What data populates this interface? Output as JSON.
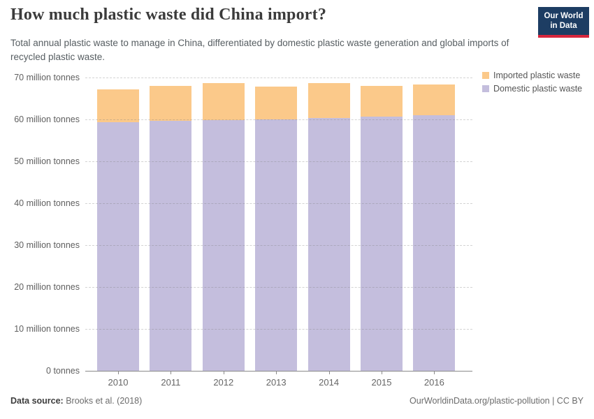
{
  "header": {
    "title": "How much plastic waste did China import?",
    "subtitle": "Total annual plastic waste to manage in China, differentiated by domestic plastic waste generation and global imports of recycled plastic waste.",
    "logo": {
      "line1": "Our World",
      "line2": "in Data",
      "bg_color": "#1d3d63",
      "accent_color": "#d7263d"
    }
  },
  "legend": {
    "items": [
      {
        "label": "Imported plastic waste",
        "color": "#fbc98a"
      },
      {
        "label": "Domestic plastic waste",
        "color": "#c4bedd"
      }
    ]
  },
  "chart_data": {
    "type": "bar",
    "stacked": true,
    "title": "How much plastic waste did China import?",
    "unit": "million tonnes",
    "categories": [
      "2010",
      "2011",
      "2012",
      "2013",
      "2014",
      "2015",
      "2016"
    ],
    "series": [
      {
        "name": "Domestic plastic waste",
        "color": "#c4bedd",
        "values": [
          59.3,
          59.6,
          59.8,
          60.0,
          60.4,
          60.7,
          61.0
        ]
      },
      {
        "name": "Imported plastic waste",
        "color": "#fbc98a",
        "values": [
          7.9,
          8.4,
          8.9,
          7.9,
          8.2,
          7.3,
          7.3
        ]
      }
    ],
    "ylim": [
      0,
      70
    ],
    "ytick_interval": 10,
    "ytick_labels": [
      "0 tonnes",
      "10 million tonnes",
      "20 million tonnes",
      "30 million tonnes",
      "40 million tonnes",
      "50 million tonnes",
      "60 million tonnes",
      "70 million tonnes"
    ],
    "grid": "horizontal-dashed",
    "legend_position": "top-right"
  },
  "footer": {
    "source_label": "Data source:",
    "source_value": "Brooks et al. (2018)",
    "right_text": "OurWorldinData.org/plastic-pollution | CC BY"
  }
}
